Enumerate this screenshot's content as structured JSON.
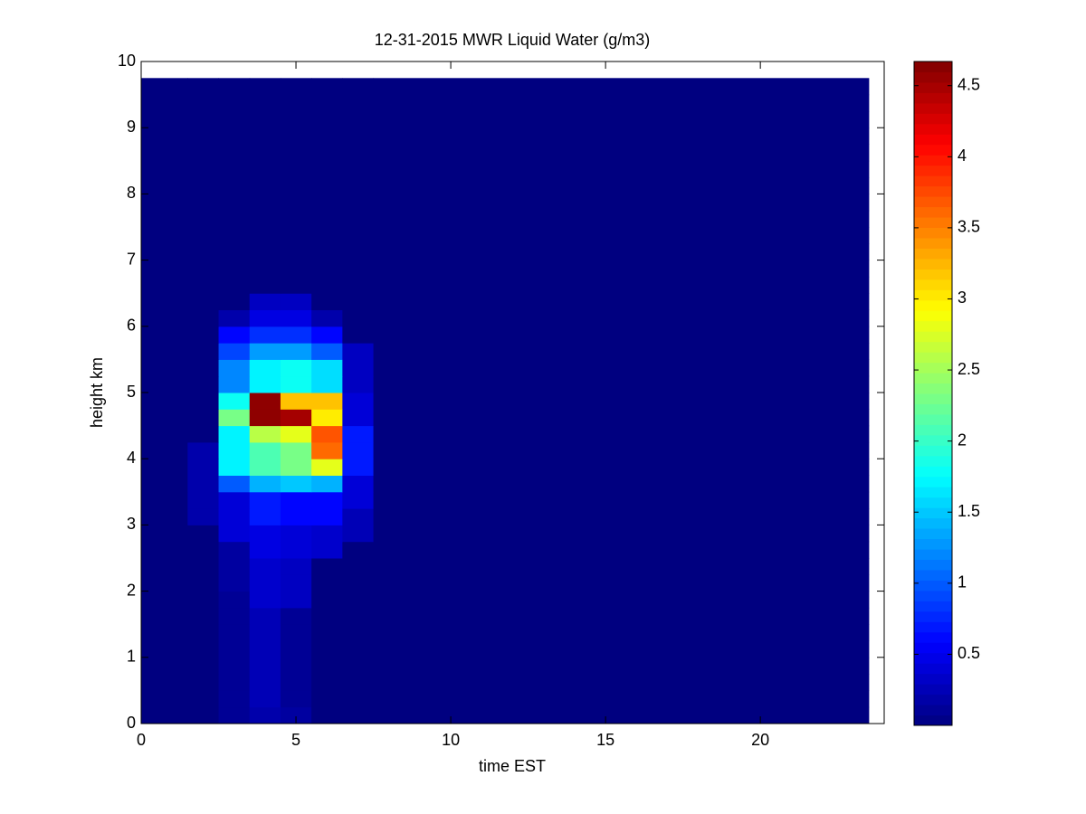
{
  "chart_data": {
    "type": "heatmap",
    "title": "12-31-2015 MWR Liquid Water (g/m3)",
    "x_label": "time EST",
    "y_label": "height km",
    "x_edges": [
      0,
      1.5,
      2.5,
      3.5,
      4.5,
      5.5,
      6.5,
      7.5,
      23.5
    ],
    "y_edges": [
      0,
      0.25,
      0.5,
      0.75,
      1,
      1.25,
      1.5,
      1.75,
      2,
      2.25,
      2.5,
      2.75,
      3,
      3.25,
      3.5,
      3.75,
      4,
      4.25,
      4.5,
      4.75,
      5,
      5.25,
      5.5,
      5.75,
      6,
      6.25,
      6.5,
      6.75,
      7,
      7.25,
      7.5,
      7.75,
      8,
      8.25,
      8.5,
      8.75,
      9,
      9.25,
      9.5,
      9.75
    ],
    "z": [
      [
        0,
        0,
        0.1,
        0.2,
        0.15,
        0,
        0,
        0
      ],
      [
        0,
        0,
        0.1,
        0.25,
        0.1,
        0,
        0,
        0
      ],
      [
        0,
        0,
        0.1,
        0.25,
        0.1,
        0,
        0,
        0
      ],
      [
        0,
        0,
        0.1,
        0.25,
        0.1,
        0,
        0,
        0
      ],
      [
        0,
        0,
        0.1,
        0.25,
        0.1,
        0,
        0,
        0
      ],
      [
        0,
        0,
        0.1,
        0.25,
        0.1,
        0,
        0,
        0
      ],
      [
        0,
        0,
        0.1,
        0.25,
        0.1,
        0,
        0,
        0
      ],
      [
        0,
        0,
        0.1,
        0.35,
        0.3,
        0,
        0,
        0
      ],
      [
        0,
        0,
        0.15,
        0.35,
        0.3,
        0,
        0,
        0
      ],
      [
        0,
        0,
        0.15,
        0.35,
        0.3,
        0,
        0,
        0
      ],
      [
        0,
        0,
        0.15,
        0.45,
        0.4,
        0.35,
        0,
        0
      ],
      [
        0,
        0,
        0.4,
        0.45,
        0.4,
        0.35,
        0.25,
        0
      ],
      [
        0,
        0.2,
        0.4,
        0.7,
        0.6,
        0.6,
        0.25,
        0
      ],
      [
        0,
        0.2,
        0.4,
        0.7,
        0.6,
        0.6,
        0.4,
        0
      ],
      [
        0,
        0.2,
        1.0,
        1.4,
        1.5,
        1.4,
        0.4,
        0
      ],
      [
        0,
        0.2,
        1.7,
        2.1,
        2.3,
        2.8,
        0.7,
        0
      ],
      [
        0,
        0.2,
        1.7,
        2.1,
        2.3,
        3.6,
        0.7,
        0
      ],
      [
        0,
        0,
        1.7,
        2.6,
        2.8,
        3.7,
        0.7,
        0
      ],
      [
        0,
        0,
        2.3,
        4.6,
        4.5,
        3.0,
        0.4,
        0
      ],
      [
        0,
        0,
        1.8,
        4.6,
        3.2,
        3.2,
        0.4,
        0
      ],
      [
        0,
        0,
        1.2,
        1.7,
        1.8,
        1.6,
        0.3,
        0
      ],
      [
        0,
        0,
        1.2,
        1.7,
        1.8,
        1.6,
        0.3,
        0
      ],
      [
        0,
        0,
        0.9,
        1.3,
        1.3,
        1.0,
        0.3,
        0
      ],
      [
        0,
        0,
        0.6,
        0.8,
        0.8,
        0.6,
        0,
        0
      ],
      [
        0,
        0,
        0.2,
        0.45,
        0.45,
        0.2,
        0,
        0
      ],
      [
        0,
        0,
        0,
        0.3,
        0.3,
        0,
        0,
        0
      ],
      [
        0,
        0,
        0,
        0,
        0,
        0,
        0,
        0
      ],
      [
        0,
        0,
        0,
        0,
        0,
        0,
        0,
        0
      ],
      [
        0,
        0,
        0,
        0,
        0,
        0,
        0,
        0
      ],
      [
        0,
        0,
        0,
        0,
        0,
        0,
        0,
        0
      ],
      [
        0,
        0,
        0,
        0,
        0,
        0,
        0,
        0
      ],
      [
        0,
        0,
        0,
        0,
        0,
        0,
        0,
        0
      ],
      [
        0,
        0,
        0,
        0,
        0,
        0,
        0,
        0
      ],
      [
        0,
        0,
        0,
        0,
        0,
        0,
        0,
        0
      ],
      [
        0,
        0,
        0,
        0,
        0,
        0,
        0,
        0
      ],
      [
        0,
        0,
        0,
        0,
        0,
        0,
        0,
        0
      ],
      [
        0,
        0,
        0,
        0,
        0,
        0,
        0,
        0
      ],
      [
        0,
        0,
        0,
        0,
        0,
        0,
        0,
        0
      ],
      [
        0,
        0,
        0,
        0,
        0,
        0,
        0,
        0
      ]
    ],
    "colormap": "jet",
    "clim": [
      0,
      4.67
    ],
    "cticks": [
      0.5,
      1,
      1.5,
      2,
      2.5,
      3,
      3.5,
      4,
      4.5
    ],
    "xlim": [
      0,
      24
    ],
    "xticks": [
      0,
      5,
      10,
      15,
      20
    ],
    "ylim": [
      0,
      10
    ],
    "yticks": [
      0,
      1,
      2,
      3,
      4,
      5,
      6,
      7,
      8,
      9,
      10
    ]
  }
}
